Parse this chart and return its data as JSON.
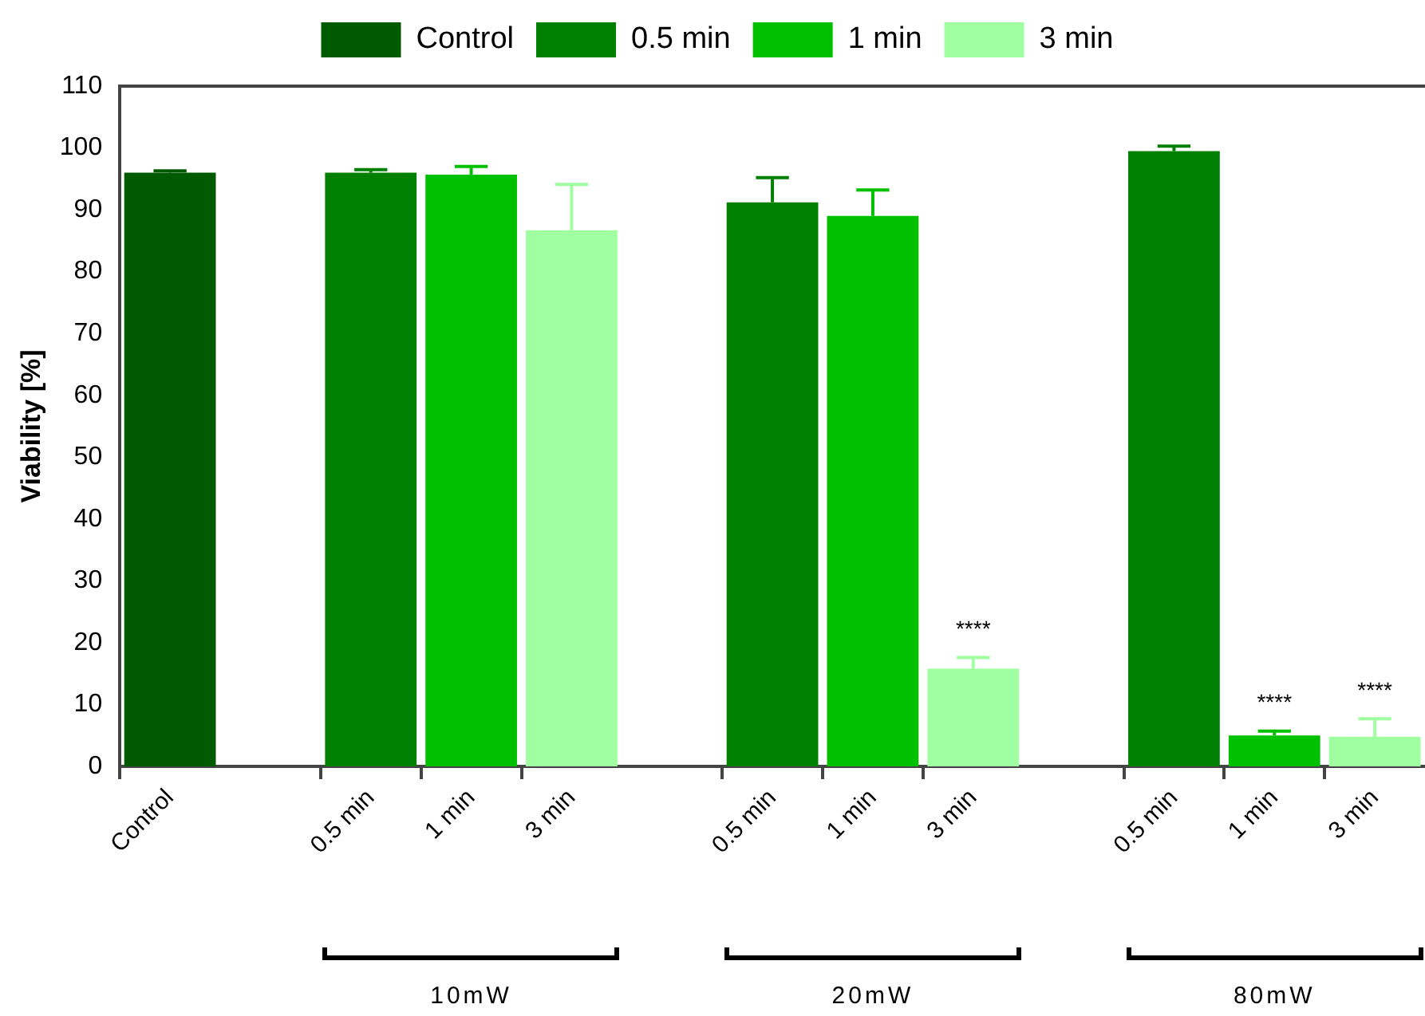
{
  "chart_data": {
    "type": "bar",
    "ylabel": "Viability [%]",
    "categories": [
      "Control",
      null,
      "0.5 min",
      "1 min",
      "3 min",
      null,
      "0.5 min",
      "1 min",
      "3 min",
      null,
      "0.5 min",
      "1 min",
      "3 min"
    ],
    "series": [
      {
        "name": "Control",
        "color": "#005a00",
        "values": [
          96,
          null,
          null,
          null,
          null,
          null,
          null,
          null,
          null,
          null,
          null,
          null,
          null
        ],
        "errors": [
          [
            96,
            96.3
          ],
          null,
          null,
          null,
          null,
          null,
          null,
          null,
          null,
          null,
          null,
          null,
          null
        ]
      },
      {
        "name": "0.5 min",
        "color": "#008000",
        "values": [
          null,
          null,
          96,
          null,
          null,
          null,
          91.2,
          null,
          null,
          null,
          99.5,
          null,
          null
        ],
        "errors": [
          null,
          null,
          [
            96,
            96.5
          ],
          null,
          null,
          null,
          [
            91.2,
            95.2
          ],
          null,
          null,
          null,
          [
            99.5,
            100.3
          ],
          null,
          null
        ]
      },
      {
        "name": "1 min",
        "color": "#00c000",
        "values": [
          null,
          null,
          null,
          95.7,
          null,
          null,
          null,
          89,
          null,
          null,
          null,
          5,
          null
        ],
        "errors": [
          null,
          null,
          null,
          [
            95.7,
            97
          ],
          null,
          null,
          null,
          [
            89,
            93.2
          ],
          null,
          null,
          null,
          [
            5,
            5.7
          ],
          null
        ],
        "value_labels": [
          null,
          null,
          null,
          null,
          null,
          null,
          null,
          null,
          null,
          null,
          null,
          "****",
          null
        ]
      },
      {
        "name": "3 min",
        "color": "#a0ffa0",
        "values": [
          null,
          null,
          null,
          null,
          86.7,
          null,
          null,
          null,
          15.8,
          null,
          null,
          null,
          4.8
        ],
        "errors": [
          null,
          null,
          null,
          null,
          [
            86.7,
            94.1
          ],
          null,
          null,
          null,
          [
            15.8,
            17.6
          ],
          null,
          null,
          null,
          [
            4.8,
            7.7
          ]
        ],
        "value_labels": [
          null,
          null,
          null,
          null,
          null,
          null,
          null,
          null,
          "****",
          null,
          null,
          null,
          "****"
        ]
      }
    ],
    "ylim": [
      0,
      110
    ],
    "yticks": [
      0,
      10,
      20,
      30,
      40,
      50,
      60,
      70,
      80,
      90,
      100,
      110
    ],
    "legend": "top",
    "grid": false,
    "annotations": [
      "10mW",
      "20mW",
      "80mW"
    ]
  }
}
